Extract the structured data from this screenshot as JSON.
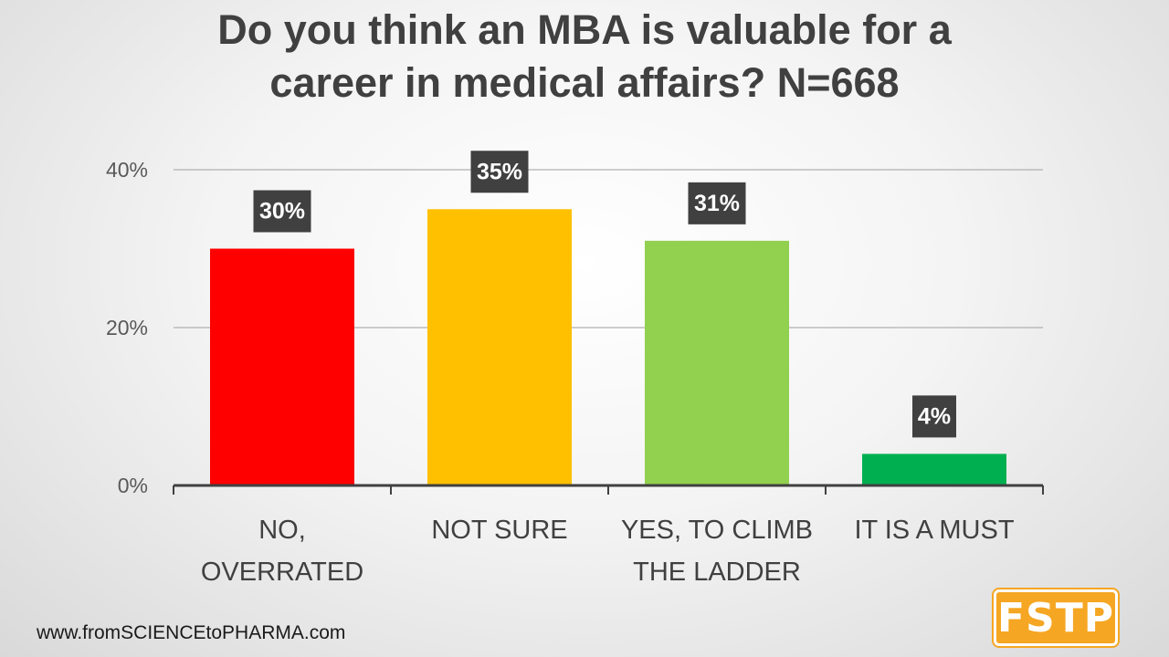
{
  "chart_data": {
    "type": "bar",
    "title_lines": [
      "Do you think an MBA is valuable for a",
      "career in medical affairs? N=668"
    ],
    "categories": [
      [
        "NO,",
        "OVERRATED"
      ],
      [
        "NOT SURE"
      ],
      [
        "YES, TO CLIMB",
        "THE LADDER"
      ],
      [
        "IT IS A MUST"
      ]
    ],
    "values": [
      30,
      35,
      31,
      4
    ],
    "data_labels": [
      "30%",
      "35%",
      "31%",
      "4%"
    ],
    "colors": [
      "#ff0000",
      "#ffc000",
      "#92d050",
      "#00b050"
    ],
    "yticks": [
      "0%",
      "20%",
      "40%"
    ],
    "ytick_values": [
      0,
      20,
      40
    ],
    "ylim": [
      0,
      40
    ],
    "grid": true,
    "xlabel": "",
    "ylabel": ""
  },
  "footer": {
    "url": "www.fromSCIENCEtoPHARMA.com"
  },
  "logo": {
    "text": "FSTP",
    "color": "#f5a623"
  }
}
